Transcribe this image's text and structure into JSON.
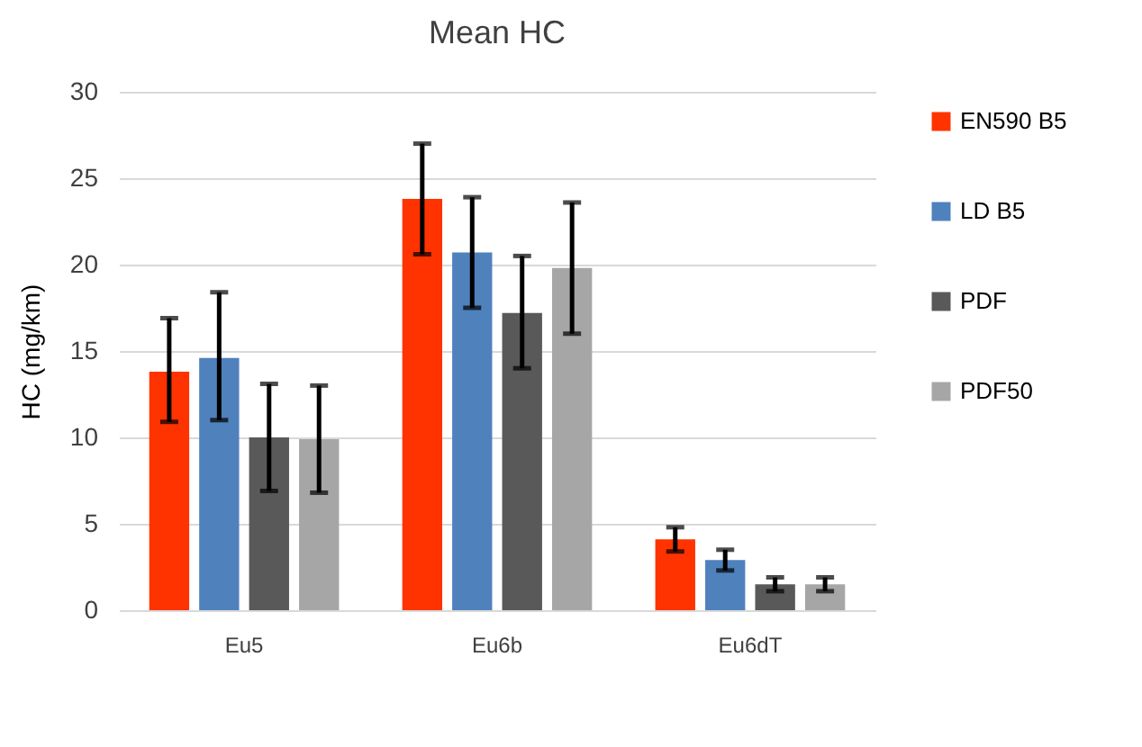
{
  "chart_data": {
    "type": "bar",
    "title": "Mean HC",
    "ylabel": "HC (mg/km)",
    "categories": [
      "Eu5",
      "Eu6b",
      "Eu6dT"
    ],
    "series": [
      {
        "name": "EN590 B5",
        "color": "#ff3300",
        "values": [
          13.8,
          23.8,
          4.1
        ],
        "errors": [
          [
            10.9,
            16.9
          ],
          [
            20.6,
            27
          ],
          [
            3.4,
            4.8
          ]
        ]
      },
      {
        "name": "LD B5",
        "color": "#4f81bd",
        "values": [
          14.6,
          20.7,
          2.9
        ],
        "errors": [
          [
            11,
            18.4
          ],
          [
            17.5,
            23.9
          ],
          [
            2.3,
            3.5
          ]
        ]
      },
      {
        "name": "PDF",
        "color": "#595959",
        "values": [
          10,
          17.2,
          1.5
        ],
        "errors": [
          [
            6.9,
            13.1
          ],
          [
            14,
            20.5
          ],
          [
            1.1,
            1.9
          ]
        ]
      },
      {
        "name": "PDF50",
        "color": "#a6a6a6",
        "values": [
          9.9,
          19.8,
          1.5
        ],
        "errors": [
          [
            6.8,
            13
          ],
          [
            16,
            23.6
          ],
          [
            1.1,
            1.9
          ]
        ]
      }
    ],
    "ylim": [
      0,
      30
    ],
    "yticks": [
      0,
      5,
      10,
      15,
      20,
      25,
      30
    ],
    "grid": "y",
    "legend": "right"
  }
}
